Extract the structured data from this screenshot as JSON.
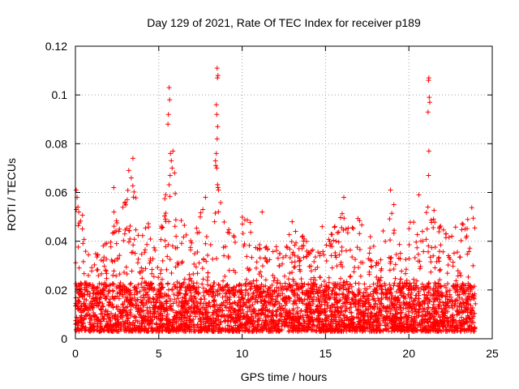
{
  "chart_data": {
    "type": "scatter",
    "title": "Day 129 of 2021, Rate Of TEC Index for receiver p189",
    "xlabel": "GPS time / hours",
    "ylabel": "ROTI / TECUs",
    "xlim": [
      0,
      25
    ],
    "ylim": [
      0,
      0.12
    ],
    "xticks": [
      "0",
      "5",
      "10",
      "15",
      "20",
      "25"
    ],
    "yticks": [
      "0",
      "0.02",
      "0.04",
      "0.06",
      "0.08",
      "0.1",
      "0.12"
    ],
    "grid": true,
    "marker": "+",
    "color": "#ff0000",
    "envelope": [
      [
        0.0,
        0.055
      ],
      [
        0.3,
        0.058
      ],
      [
        0.6,
        0.045
      ],
      [
        1.0,
        0.035
      ],
      [
        1.5,
        0.04
      ],
      [
        2.0,
        0.045
      ],
      [
        2.3,
        0.055
      ],
      [
        2.7,
        0.05
      ],
      [
        3.0,
        0.06
      ],
      [
        3.3,
        0.068
      ],
      [
        3.6,
        0.06
      ],
      [
        4.0,
        0.045
      ],
      [
        4.5,
        0.05
      ],
      [
        5.0,
        0.04
      ],
      [
        5.3,
        0.055
      ],
      [
        5.6,
        0.075
      ],
      [
        5.9,
        0.07
      ],
      [
        6.3,
        0.05
      ],
      [
        7.0,
        0.04
      ],
      [
        7.5,
        0.055
      ],
      [
        8.0,
        0.048
      ],
      [
        8.3,
        0.052
      ],
      [
        8.6,
        0.075
      ],
      [
        9.0,
        0.045
      ],
      [
        9.5,
        0.048
      ],
      [
        10.0,
        0.05
      ],
      [
        10.5,
        0.048
      ],
      [
        11.0,
        0.04
      ],
      [
        11.5,
        0.038
      ],
      [
        12.0,
        0.04
      ],
      [
        12.5,
        0.04
      ],
      [
        13.0,
        0.045
      ],
      [
        13.5,
        0.043
      ],
      [
        14.0,
        0.04
      ],
      [
        14.5,
        0.035
      ],
      [
        15.0,
        0.04
      ],
      [
        15.5,
        0.045
      ],
      [
        16.0,
        0.055
      ],
      [
        16.5,
        0.045
      ],
      [
        17.0,
        0.05
      ],
      [
        17.5,
        0.045
      ],
      [
        18.0,
        0.045
      ],
      [
        18.5,
        0.05
      ],
      [
        19.0,
        0.055
      ],
      [
        19.5,
        0.045
      ],
      [
        20.0,
        0.055
      ],
      [
        20.5,
        0.045
      ],
      [
        20.8,
        0.045
      ],
      [
        21.1,
        0.06
      ],
      [
        21.4,
        0.055
      ],
      [
        21.8,
        0.05
      ],
      [
        22.2,
        0.045
      ],
      [
        22.6,
        0.045
      ],
      [
        23.0,
        0.05
      ],
      [
        23.4,
        0.05
      ],
      [
        23.8,
        0.055
      ],
      [
        24.0,
        0.05
      ]
    ],
    "points": [
      [
        5.62,
        0.103
      ],
      [
        5.65,
        0.098
      ],
      [
        5.58,
        0.092
      ],
      [
        5.55,
        0.088
      ],
      [
        5.7,
        0.076
      ],
      [
        5.85,
        0.077
      ],
      [
        5.75,
        0.073
      ],
      [
        5.8,
        0.07
      ],
      [
        5.95,
        0.068
      ],
      [
        5.68,
        0.067
      ],
      [
        3.45,
        0.074
      ],
      [
        3.2,
        0.069
      ],
      [
        3.35,
        0.066
      ],
      [
        8.5,
        0.111
      ],
      [
        8.55,
        0.108
      ],
      [
        8.52,
        0.107
      ],
      [
        8.45,
        0.096
      ],
      [
        8.48,
        0.092
      ],
      [
        8.53,
        0.087
      ],
      [
        8.5,
        0.082
      ],
      [
        8.45,
        0.076
      ],
      [
        8.4,
        0.073
      ],
      [
        8.42,
        0.071
      ],
      [
        8.48,
        0.07
      ],
      [
        8.55,
        0.062
      ],
      [
        8.58,
        0.061
      ],
      [
        7.8,
        0.058
      ],
      [
        21.2,
        0.107
      ],
      [
        21.18,
        0.106
      ],
      [
        21.22,
        0.099
      ],
      [
        21.25,
        0.097
      ],
      [
        21.15,
        0.093
      ],
      [
        21.2,
        0.077
      ],
      [
        21.18,
        0.067
      ],
      [
        0.05,
        0.061
      ],
      [
        0.1,
        0.058
      ],
      [
        0.15,
        0.054
      ],
      [
        0.05,
        0.053
      ],
      [
        0.2,
        0.052
      ],
      [
        18.9,
        0.061
      ],
      [
        19.1,
        0.055
      ],
      [
        20.6,
        0.059
      ],
      [
        16.1,
        0.058
      ],
      [
        2.3,
        0.062
      ],
      [
        13.0,
        0.048
      ],
      [
        14.8,
        0.046
      ],
      [
        11.2,
        0.052
      ]
    ]
  }
}
